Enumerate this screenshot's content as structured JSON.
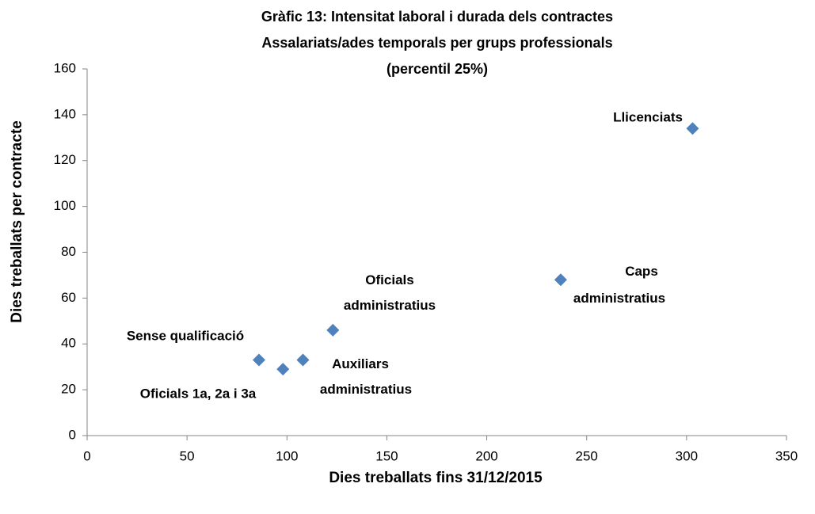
{
  "chart_data": {
    "type": "scatter",
    "title": [
      "Gràfic 13: Intensitat laboral i durada dels contractes",
      "Assalariats/ades temporals per grups professionals",
      "(percentil 25%)"
    ],
    "xlabel": "Dies treballats fins 31/12/2015",
    "ylabel": "Dies treballats per contracte",
    "labels": [
      "Sense qualificació",
      "Oficials 1a, 2a i 3a",
      "Auxiliars administratius",
      "Oficials administratius",
      "Caps administratius",
      "Llicenciats"
    ],
    "x": [
      86,
      98,
      108,
      123,
      237,
      303
    ],
    "values": [
      33,
      29,
      33,
      46,
      68,
      134
    ],
    "color": "#4f81bd",
    "xlim": [
      0,
      350
    ],
    "xticks": [
      0,
      50,
      100,
      150,
      200,
      250,
      300,
      350
    ],
    "ylim": [
      0,
      160
    ],
    "yticks": [
      0,
      20,
      40,
      60,
      80,
      100,
      120,
      140,
      160
    ]
  }
}
